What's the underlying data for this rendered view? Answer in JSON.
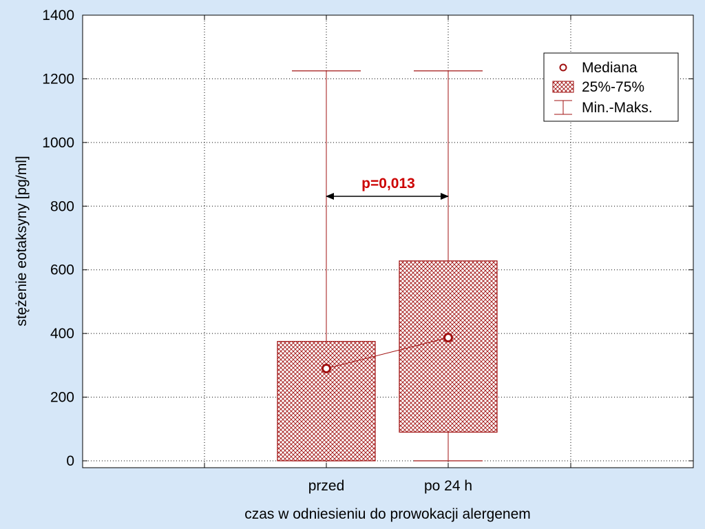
{
  "chart_data": {
    "type": "box",
    "title": "",
    "xlabel": "czas w odniesieniu do prowokacji alergenem",
    "ylabel": "stężenie eotaksyny [pg/ml]",
    "ylim": [
      0,
      1400
    ],
    "yticks": [
      0,
      200,
      400,
      600,
      800,
      1000,
      1200,
      1400
    ],
    "grid": true,
    "categories": [
      "przed",
      "po 24 h"
    ],
    "boxes": [
      {
        "category": "przed",
        "min": 0,
        "q1": 0,
        "median": 290,
        "q3": 375,
        "max": 1225
      },
      {
        "category": "po 24 h",
        "min": 0,
        "q1": 90,
        "median": 387,
        "q3": 628,
        "max": 1225
      }
    ],
    "legend": {
      "position": "top-right",
      "items": [
        {
          "label": "Mediana",
          "symbol": "circle"
        },
        {
          "label": "25%-75%",
          "symbol": "hatched-box"
        },
        {
          "label": "Min.-Maks.",
          "symbol": "whisker"
        }
      ]
    },
    "annotation": {
      "text": "p=0,013"
    },
    "colors": {
      "series": "#a01010",
      "annotation": "#cc0000",
      "background": "#d6e7f8",
      "plot": "#ffffff"
    }
  }
}
